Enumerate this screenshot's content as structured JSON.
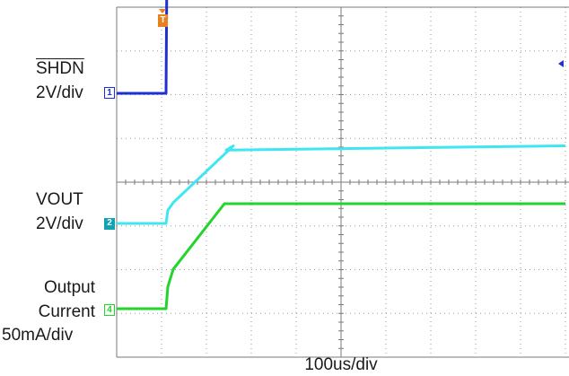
{
  "chart_data": {
    "type": "line",
    "timebase": "100us/div",
    "x_unit": "us",
    "xlim": [
      -250,
      250
    ],
    "grid": true,
    "trigger_label": "T",
    "trigger_time": -194,
    "channels": [
      {
        "id": "1",
        "name": "SHDN",
        "scale": "2V/div",
        "marker_style": "outline",
        "color": "#1f2fd6",
        "x": [
          -250,
          -195,
          -194,
          250
        ],
        "y": [
          0,
          0,
          5.9,
          5.9
        ]
      },
      {
        "id": "2",
        "name": "VOUT",
        "scale": "2V/div",
        "marker_style": "filled",
        "color": "#3fe6f2",
        "x": [
          -250,
          -195,
          -193,
          -187,
          -120,
          -128,
          250
        ],
        "y": [
          0,
          0,
          0.6,
          0.95,
          3.55,
          3.35,
          3.55
        ]
      },
      {
        "id": "4",
        "name": "Output Current",
        "scale": "50mA/div",
        "marker_style": "outline",
        "color": "#22d42b",
        "x": [
          -250,
          -195,
          -193,
          -187,
          -130,
          250
        ],
        "y": [
          0,
          0,
          25,
          45,
          120,
          120
        ]
      }
    ]
  }
}
